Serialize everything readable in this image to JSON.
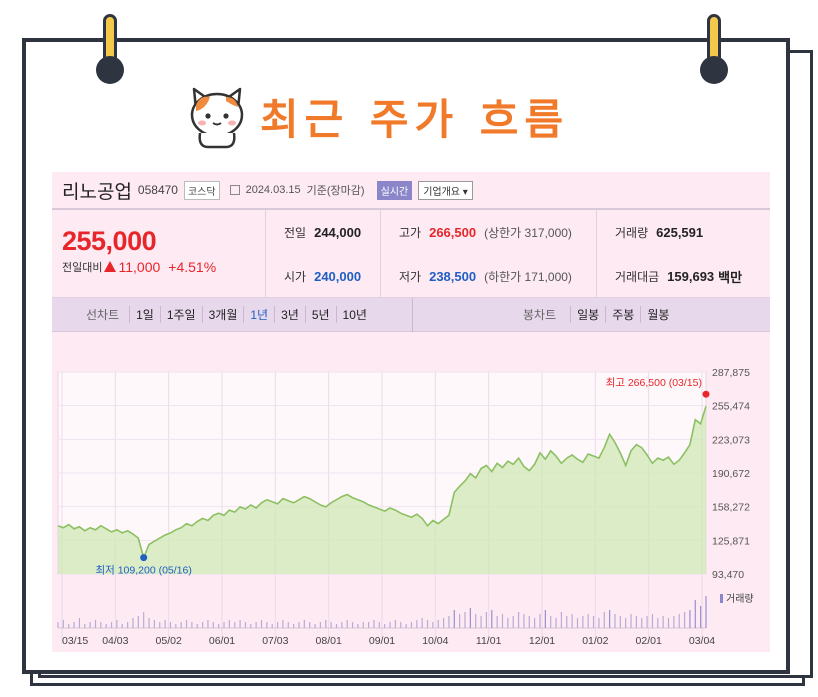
{
  "header": {
    "title": "최근 주가 흐름",
    "mascot_icon": "cat-mascot-icon"
  },
  "stock": {
    "name": "리노공업",
    "code": "058470",
    "market": "코스닥",
    "date": "2024.03.15",
    "basis": "기준(장마감)",
    "live_label": "실시간",
    "info_label": "기업개요",
    "price": "255,000",
    "change_label": "전일대비",
    "change": "11,000",
    "change_pct": "+4.51%",
    "quote": {
      "prev_label": "전일",
      "prev": "244,000",
      "high_label": "고가",
      "high": "266,500",
      "upper_limit": "(상한가 317,000)",
      "volume_label": "거래량",
      "volume": "625,591",
      "open_label": "시가",
      "open": "240,000",
      "low_label": "저가",
      "low": "238,500",
      "lower_limit": "(하한가 171,000)",
      "amount_label": "거래대금",
      "amount": "159,693",
      "amount_unit": "백만"
    },
    "colors": {
      "up": "#e8262a",
      "down": "#1f5fc4",
      "line": "#8cc063",
      "fill": "#cfe8b4"
    }
  },
  "tabs": {
    "line_chart_label": "선차트",
    "line_periods": [
      "1일",
      "1주일",
      "3개월",
      "1년",
      "3년",
      "5년",
      "10년"
    ],
    "active_period": "1년",
    "candle_label": "봉차트",
    "candle_periods": [
      "일봉",
      "주봉",
      "월봉"
    ]
  },
  "chart_data": {
    "type": "area",
    "y_ticks": [
      "287,875",
      "255,474",
      "223,073",
      "190,672",
      "158,272",
      "125,871",
      "93,470"
    ],
    "ylim": [
      93470,
      287875
    ],
    "x_ticks": [
      "03/15",
      "04/03",
      "05/02",
      "06/01",
      "07/03",
      "08/01",
      "09/01",
      "10/04",
      "11/01",
      "12/01",
      "01/02",
      "02/01",
      "03/04"
    ],
    "max_annotation": "최고 266,500 (03/15)",
    "min_annotation": "최저 109,200 (05/16)",
    "max_value": 266500,
    "min_value": 109200,
    "volume_legend": "거래량",
    "series": [
      {
        "values": [
          140000,
          138000,
          141000,
          137000,
          139000,
          135000,
          138000,
          136000,
          140000,
          137000,
          134000,
          136000,
          133000,
          135000,
          132000,
          128000,
          109200,
          122000,
          125000,
          128000,
          131000,
          133000,
          136000,
          138000,
          142000,
          140000,
          144000,
          147000,
          145000,
          150000,
          152000,
          150000,
          155000,
          153000,
          158000,
          156000,
          160000,
          157000,
          162000,
          165000,
          163000,
          161000,
          166000,
          164000,
          162000,
          165000,
          168000,
          166000,
          163000,
          160000,
          158000,
          162000,
          165000,
          168000,
          170000,
          167000,
          165000,
          163000,
          160000,
          158000,
          156000,
          154000,
          157000,
          155000,
          152000,
          150000,
          148000,
          151000,
          147000,
          140000,
          145000,
          142000,
          146000,
          150000,
          172000,
          178000,
          183000,
          190000,
          186000,
          195000,
          198000,
          192000,
          200000,
          196000,
          202000,
          199000,
          205000,
          197000,
          193000,
          199000,
          210000,
          204000,
          212000,
          207000,
          200000,
          205000,
          208000,
          204000,
          201000,
          209000,
          207000,
          205000,
          215000,
          228000,
          220000,
          210000,
          198000,
          212000,
          218000,
          215000,
          208000,
          200000,
          205000,
          203000,
          206000,
          199000,
          203000,
          210000,
          218000,
          242000,
          238000,
          255000
        ]
      }
    ],
    "volume": [
      3,
      4,
      2,
      3,
      5,
      2,
      3,
      4,
      3,
      2,
      3,
      4,
      2,
      3,
      5,
      6,
      8,
      5,
      4,
      3,
      4,
      3,
      2,
      3,
      4,
      3,
      2,
      3,
      4,
      3,
      2,
      3,
      4,
      3,
      4,
      3,
      2,
      3,
      4,
      3,
      2,
      3,
      4,
      3,
      2,
      3,
      4,
      3,
      2,
      3,
      4,
      3,
      2,
      3,
      4,
      3,
      2,
      3,
      3,
      4,
      3,
      2,
      3,
      4,
      3,
      2,
      3,
      4,
      5,
      4,
      3,
      4,
      5,
      6,
      9,
      7,
      8,
      10,
      7,
      6,
      8,
      9,
      6,
      7,
      5,
      6,
      8,
      7,
      6,
      5,
      7,
      9,
      6,
      5,
      8,
      6,
      7,
      5,
      6,
      7,
      6,
      5,
      8,
      9,
      7,
      6,
      5,
      7,
      6,
      5,
      6,
      7,
      5,
      6,
      5,
      6,
      7,
      8,
      9,
      14,
      11,
      16
    ]
  }
}
